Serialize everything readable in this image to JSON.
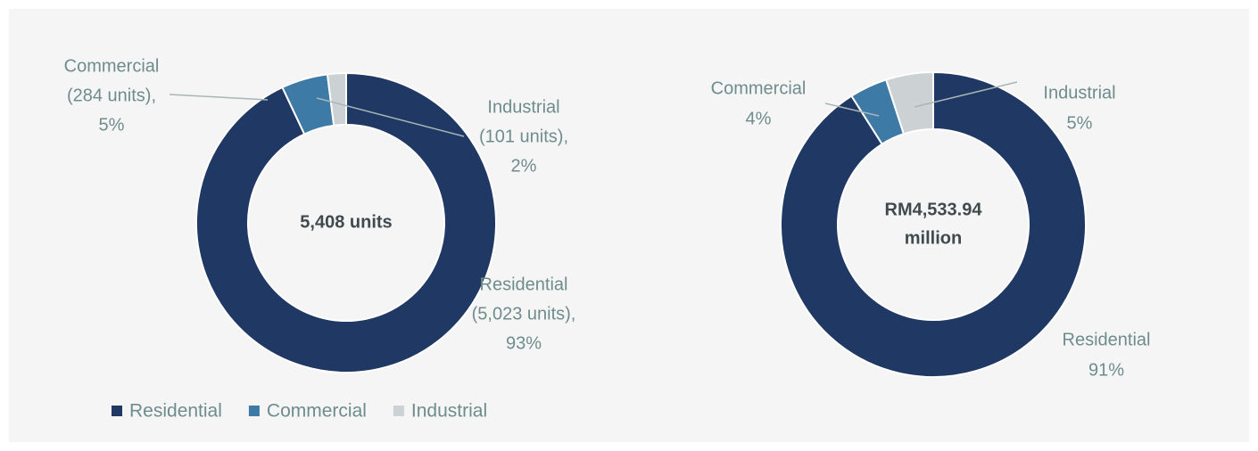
{
  "chart_data": [
    {
      "type": "donut",
      "center_label": [
        "5,408 units"
      ],
      "categories": [
        "Residential",
        "Commercial",
        "Industrial"
      ],
      "values": [
        93,
        5,
        2
      ],
      "value_labels": [
        "93%",
        "5%",
        "2%"
      ],
      "unit_labels": [
        "(5,023 units),",
        "(284 units),",
        "(101 units),"
      ],
      "colors": [
        "#203864",
        "#3e7aa6",
        "#ccd2d4"
      ],
      "legend": "bottom"
    },
    {
      "type": "donut",
      "center_label": [
        "RM4,533.94",
        "million"
      ],
      "categories": [
        "Residential",
        "Commercial",
        "Industrial"
      ],
      "values": [
        91,
        4,
        5
      ],
      "value_labels": [
        "91%",
        "4%",
        "5%"
      ],
      "colors": [
        "#203864",
        "#3e7aa6",
        "#ccd2d4"
      ]
    }
  ]
}
